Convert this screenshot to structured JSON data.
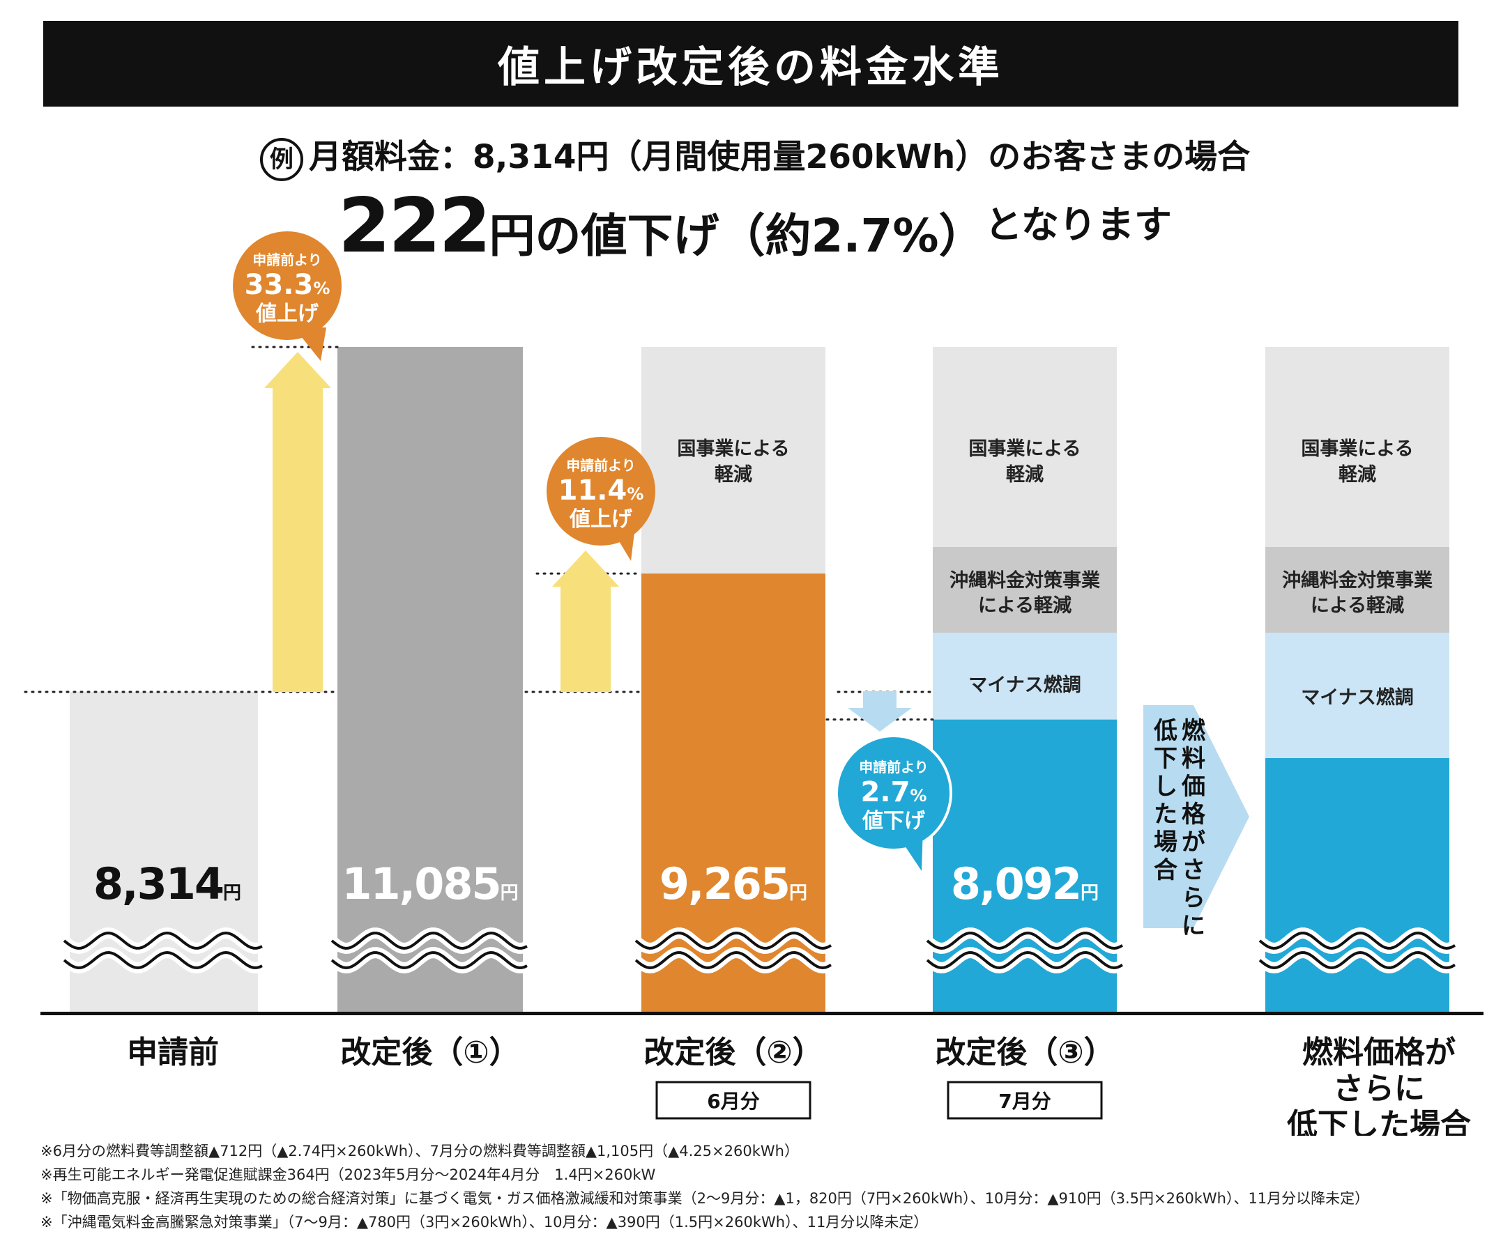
{
  "header": {
    "title": "値上げ改定後の料金水準",
    "example_mark": "例",
    "example_text": "月額料金：8,314円（月間使用量260kWh）のお客さまの場合",
    "headline_number": "222",
    "headline_text": "円の値下げ（約2.7%）",
    "headline_tail": "となります"
  },
  "chart_data": {
    "type": "bar",
    "title": "値上げ改定後の料金水準",
    "unit": "円",
    "categories": [
      "申請前",
      "改定後（①）",
      "改定後（②）",
      "改定後（③）",
      "燃料価格が\nさらに\n低下した場合"
    ],
    "category_tags": [
      "",
      "",
      "6月分",
      "7月分",
      ""
    ],
    "values": [
      8314,
      11085,
      9265,
      8092,
      null
    ],
    "value_labels": [
      "8,314",
      "11,085",
      "9,265",
      "8,092",
      ""
    ],
    "stacked_reductions": [
      {
        "name": "国事業による軽減",
        "applies_to": [
          "改定後（②）",
          "改定後（③）",
          "燃料価格がさらに低下した場合"
        ]
      },
      {
        "name": "沖縄料金対策事業による軽減",
        "applies_to": [
          "改定後（③）",
          "燃料価格がさらに低下した場合"
        ]
      },
      {
        "name": "マイナス燃調",
        "applies_to": [
          "改定後（③）",
          "燃料価格がさらに低下した場合"
        ]
      }
    ],
    "reduction_labels": {
      "national": [
        "国事業による",
        "軽減"
      ],
      "okinawa": [
        "沖縄料金対策事業",
        "による軽減"
      ],
      "fuel": "マイナス燃調"
    },
    "callouts": [
      {
        "target": "改定後（①）",
        "line1": "申請前より",
        "pct": "33.3",
        "pct_unit": "%",
        "line3": "値上げ",
        "direction": "up"
      },
      {
        "target": "改定後（②）",
        "line1": "申請前より",
        "pct": "11.4",
        "pct_unit": "%",
        "line3": "値上げ",
        "direction": "up"
      },
      {
        "target": "改定後（③）",
        "line1": "申請前より",
        "pct": "2.7",
        "pct_unit": "%",
        "line3": "値下げ",
        "direction": "down"
      }
    ],
    "transition_label": [
      "燃料",
      "価格",
      "が",
      "さらに"
    ],
    "transition_label_full": "燃料価格がさらに低下した場合",
    "transition_col_left": "低下した場合",
    "transition_col_right": "燃料価格がさらに",
    "colors": {
      "before": "#e8e8e8",
      "rev1": "#aaaaaa",
      "rev2": "#e0862e",
      "rev3": "#22a8d6",
      "national": "#e6e6e6",
      "okinawa": "#c9c9c9",
      "fuel": "#cbe5f6",
      "arrow_up": "#f7e07b",
      "arrow_down": "#b7dcf1"
    }
  },
  "footnotes": [
    "※6月分の燃料費等調整額▲712円（▲2.74円×260kWh）、7月分の燃料費等調整額▲1,105円（▲4.25×260kWh）",
    "※再生可能エネルギー発電促進賦課金364円（2023年5月分〜2024年4月分　1.4円×260kW",
    "※「物価高克服・経済再生実現のための総合経済対策」に基づく電気・ガス価格激減緩和対策事業（2〜9月分：▲1，820円（7円×260kWh）、10月分：▲910円（3.5円×260kWh）、11月分以降未定）",
    "※「沖縄電気料金高騰緊急対策事業」（7〜9月：▲780円（3円×260kWh）、10月分：▲390円（1.5円×260kWh）、11月分以降未定）"
  ]
}
